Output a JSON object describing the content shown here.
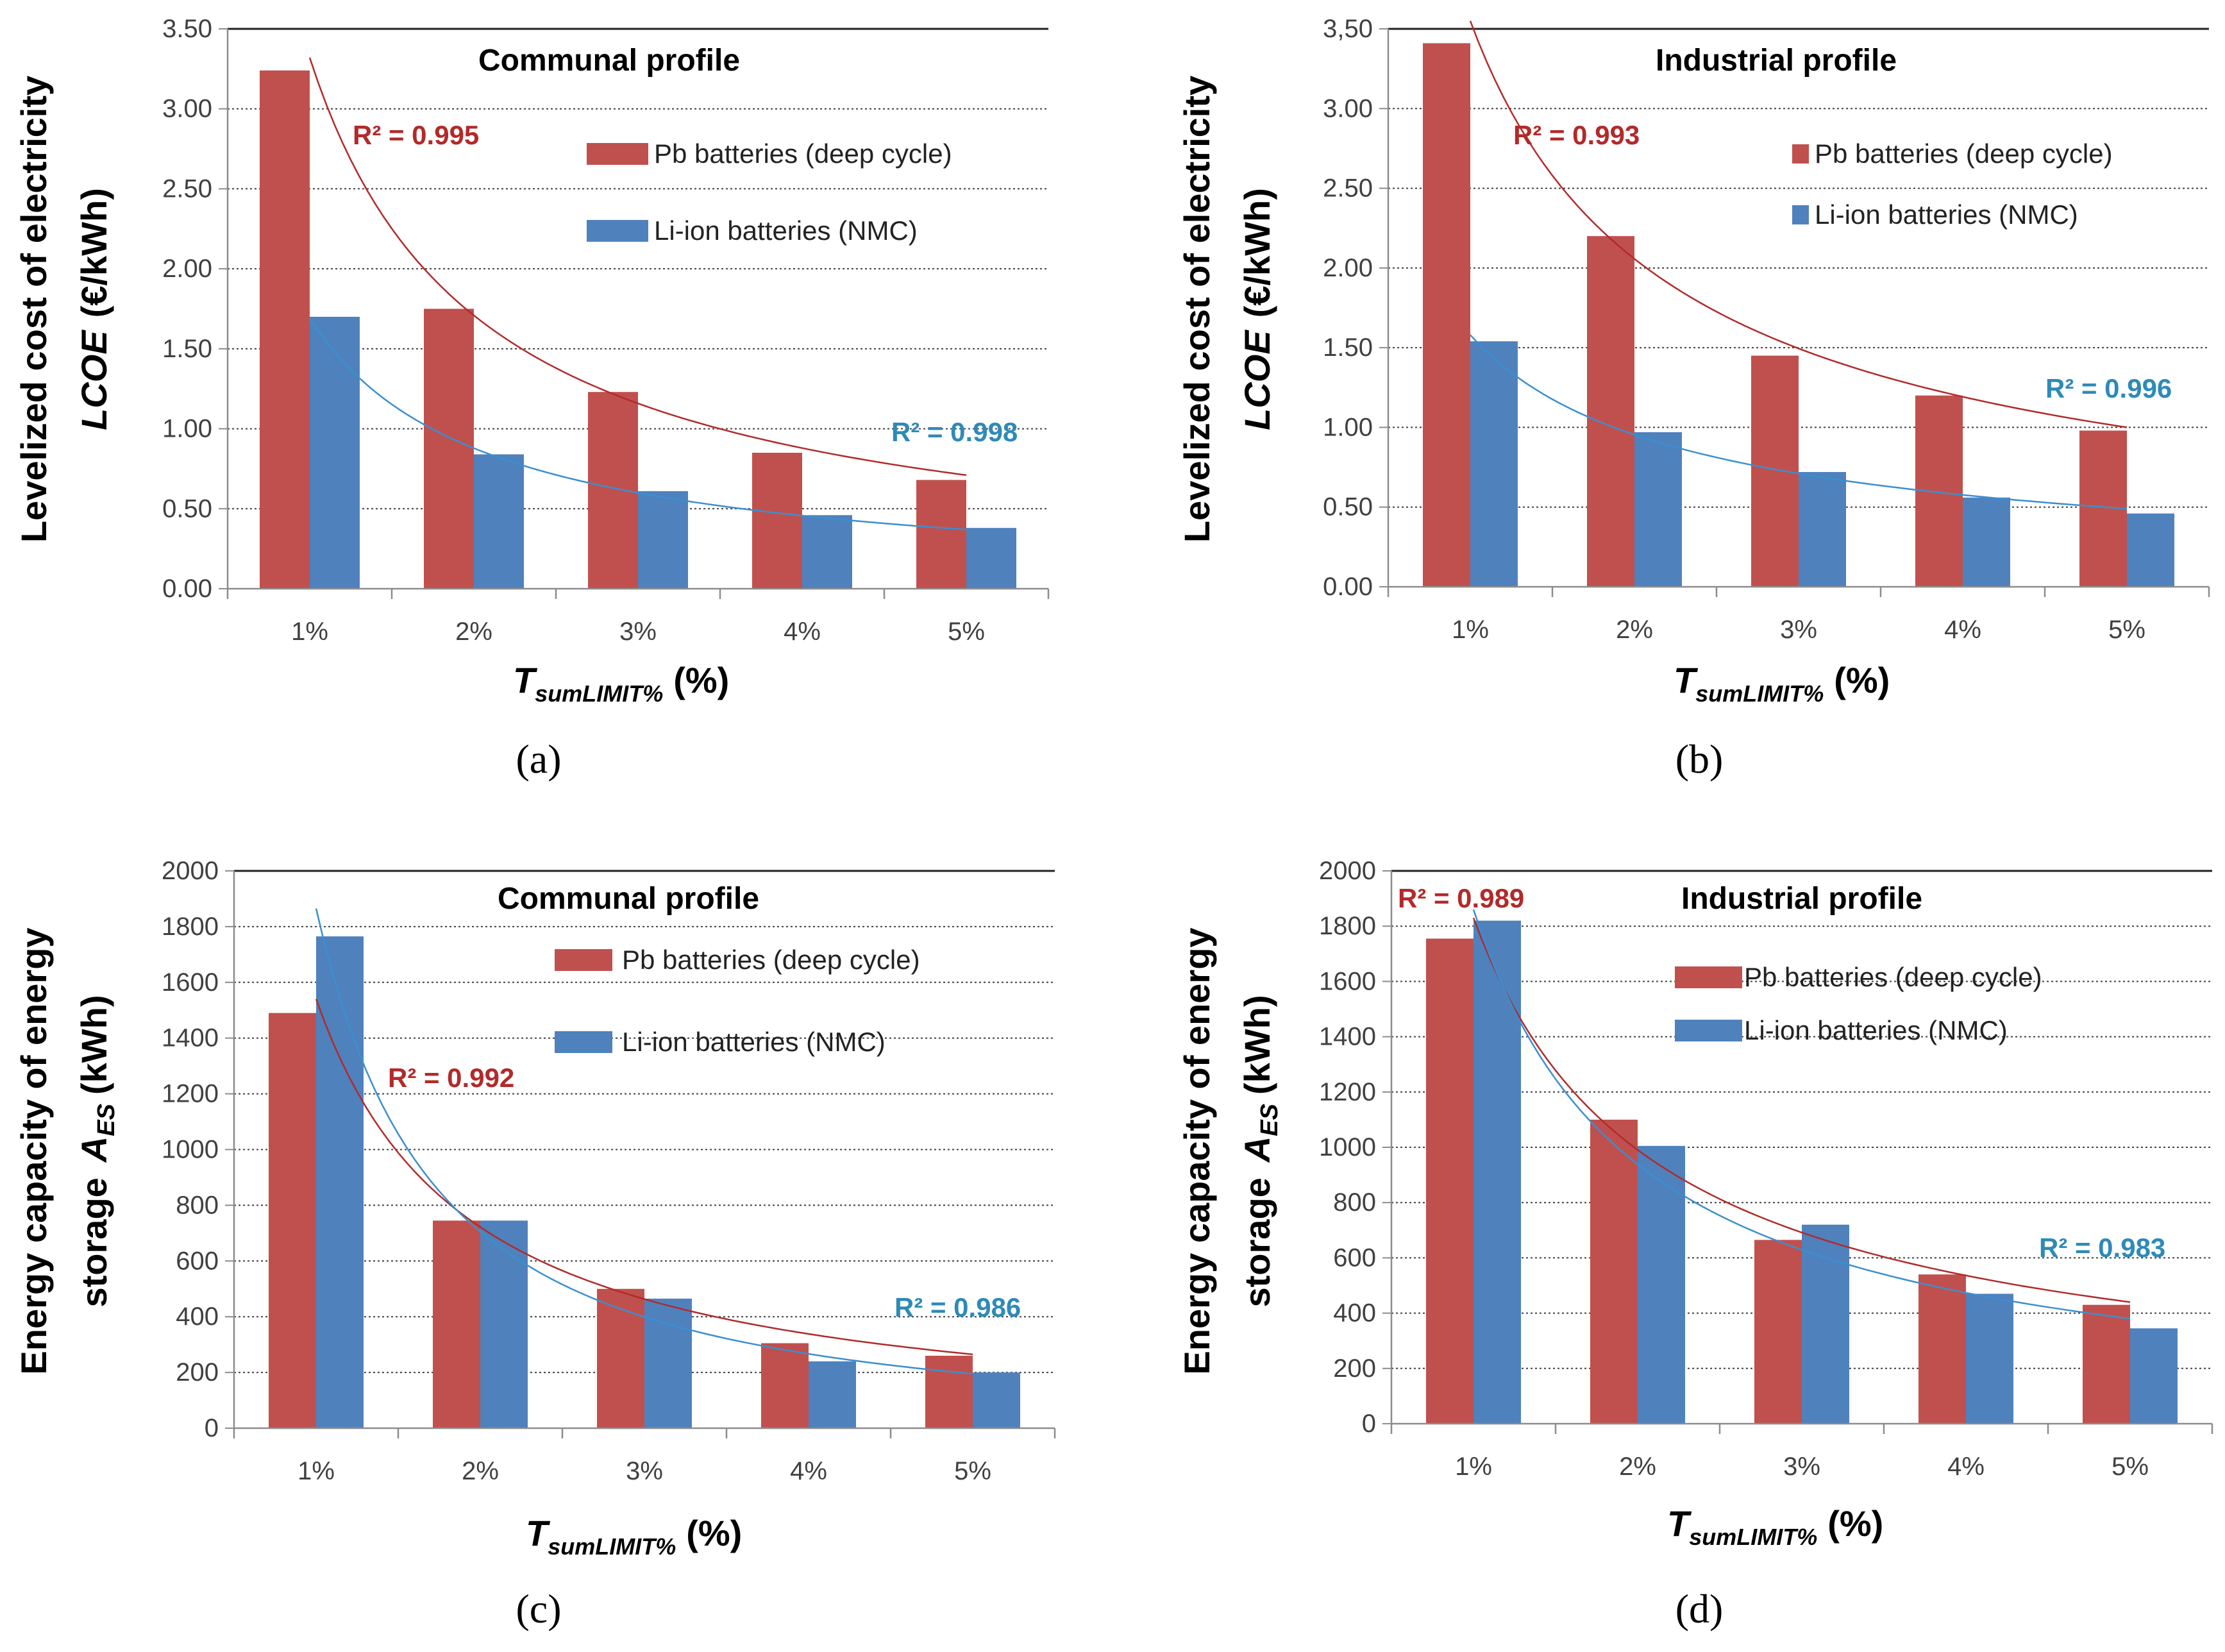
{
  "colors": {
    "pb": "#c0504d",
    "li": "#4f81bd",
    "pb_text": "#b22a2a",
    "li_text": "#2e8ab8",
    "grid": "#404040",
    "axis": "#8c8c8c",
    "text": "#000000",
    "tick": "#404040"
  },
  "chart_data": [
    {
      "panel": "(a)",
      "type": "bar",
      "title": "Communal profile",
      "ylabel_line1": "Levelized cost of electricity",
      "ylabel_line2_var": "LCOE",
      "ylabel_line2_unit": "(€/kWh)",
      "xlabel_var": "T",
      "xlabel_sub": "sumLIMIT%",
      "xlabel_unit": "(%)",
      "categories": [
        "1%",
        "2%",
        "3%",
        "4%",
        "5%"
      ],
      "ylim": [
        0,
        3.5
      ],
      "yticks": [
        "0.00",
        "0.50",
        "1.00",
        "1.50",
        "2.00",
        "2.50",
        "3.00",
        "3.50"
      ],
      "series": [
        {
          "name": "Pb batteries (deep cycle)",
          "values": [
            3.24,
            1.75,
            1.23,
            0.85,
            0.68
          ],
          "r2": "R² = 0.995",
          "trend": [
            3.32,
            0.71
          ]
        },
        {
          "name": "Li-ion batteries (NMC)",
          "values": [
            1.7,
            0.84,
            0.61,
            0.46,
            0.38
          ],
          "r2": "R² = 0.998",
          "trend": [
            1.69,
            0.37
          ]
        }
      ]
    },
    {
      "panel": "(b)",
      "type": "bar",
      "title": "Industrial profile",
      "ylabel_line1": "Levelized cost of electricity",
      "ylabel_line2_var": "LCOE",
      "ylabel_line2_unit": "(€/kWh)",
      "xlabel_var": "T",
      "xlabel_sub": "sumLIMIT%",
      "xlabel_unit": "(%)",
      "categories": [
        "1%",
        "2%",
        "3%",
        "4%",
        "5%"
      ],
      "ylim": [
        0,
        3.5
      ],
      "yticks": [
        "0.00",
        "0.50",
        "1.00",
        "1.50",
        "2.00",
        "2.50",
        "3.00",
        "3,50"
      ],
      "series": [
        {
          "name": "Pb batteries (deep cycle)",
          "values": [
            3.41,
            2.2,
            1.45,
            1.2,
            0.98
          ],
          "r2": "R² = 0.993",
          "trend": [
            3.55,
            1.0
          ]
        },
        {
          "name": "Li-ion batteries (NMC)",
          "values": [
            1.54,
            0.97,
            0.72,
            0.56,
            0.46
          ],
          "r2": "R² = 0.996",
          "trend": [
            1.58,
            0.49
          ]
        }
      ]
    },
    {
      "panel": "(c)",
      "type": "bar",
      "title": "Communal profile",
      "ylabel_line1": "Energy capacity of energy",
      "ylabel_line2_pre": "storage",
      "ylabel_line2_var": "A",
      "ylabel_line2_sub": "ES",
      "ylabel_line2_unit": "(kWh)",
      "xlabel_var": "T",
      "xlabel_sub": "sumLIMIT%",
      "xlabel_unit": "(%)",
      "categories": [
        "1%",
        "2%",
        "3%",
        "4%",
        "5%"
      ],
      "ylim": [
        0,
        2000
      ],
      "yticks": [
        "0",
        "200",
        "400",
        "600",
        "800",
        "1000",
        "1200",
        "1400",
        "1600",
        "1800",
        "2000"
      ],
      "series": [
        {
          "name": "Pb batteries (deep cycle)",
          "values": [
            1490,
            745,
            500,
            305,
            260
          ],
          "r2": "R² = 0.992",
          "trend": [
            1540,
            265
          ]
        },
        {
          "name": "Li-ion batteries (NMC)",
          "values": [
            1765,
            745,
            465,
            240,
            200
          ],
          "r2": "R² = 0.986",
          "trend": [
            1865,
            195
          ]
        }
      ]
    },
    {
      "panel": "(d)",
      "type": "bar",
      "title": "Industrial profile",
      "ylabel_line1": "Energy capacity of energy",
      "ylabel_line2_pre": "storage",
      "ylabel_line2_var": "A",
      "ylabel_line2_sub": "ES",
      "ylabel_line2_unit": "(kWh)",
      "xlabel_var": "T",
      "xlabel_sub": "sumLIMIT%",
      "xlabel_unit": "(%)",
      "categories": [
        "1%",
        "2%",
        "3%",
        "4%",
        "5%"
      ],
      "ylim": [
        0,
        2000
      ],
      "yticks": [
        "0",
        "200",
        "400",
        "600",
        "800",
        "1000",
        "1200",
        "1400",
        "1600",
        "1800",
        "2000"
      ],
      "series": [
        {
          "name": "Pb batteries (deep cycle)",
          "values": [
            1755,
            1100,
            665,
            540,
            430
          ],
          "r2": "R² = 0.989",
          "trend": [
            1830,
            440
          ]
        },
        {
          "name": "Li-ion batteries (NMC)",
          "values": [
            1820,
            1005,
            720,
            470,
            345
          ],
          "r2": "R² = 0.983",
          "trend": [
            1860,
            380
          ]
        }
      ]
    }
  ]
}
